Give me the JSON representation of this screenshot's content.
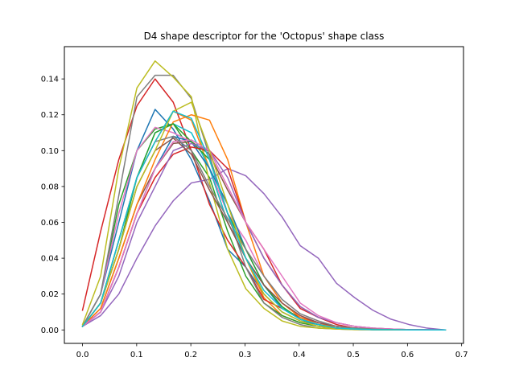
{
  "chart_data": {
    "type": "line",
    "title": "D4 shape descriptor for the 'Octopus' shape class",
    "xlabel": "",
    "ylabel": "",
    "xlim": [
      -0.0335,
      0.7035
    ],
    "ylim": [
      -0.0075,
      0.158
    ],
    "grid": false,
    "legend": "none",
    "x_ticks": [
      {
        "value": 0.0,
        "label": "0.0"
      },
      {
        "value": 0.1,
        "label": "0.1"
      },
      {
        "value": 0.2,
        "label": "0.2"
      },
      {
        "value": 0.3,
        "label": "0.3"
      },
      {
        "value": 0.4,
        "label": "0.4"
      },
      {
        "value": 0.5,
        "label": "0.5"
      },
      {
        "value": 0.6,
        "label": "0.6"
      },
      {
        "value": 0.7,
        "label": "0.7"
      }
    ],
    "y_ticks": [
      {
        "value": 0.0,
        "label": "0.00"
      },
      {
        "value": 0.02,
        "label": "0.02"
      },
      {
        "value": 0.04,
        "label": "0.04"
      },
      {
        "value": 0.06,
        "label": "0.06"
      },
      {
        "value": 0.08,
        "label": "0.08"
      },
      {
        "value": 0.1,
        "label": "0.10"
      },
      {
        "value": 0.12,
        "label": "0.12"
      },
      {
        "value": 0.14,
        "label": "0.14"
      }
    ],
    "x": [
      0.0,
      0.0335,
      0.067,
      0.1005,
      0.134,
      0.1675,
      0.201,
      0.2345,
      0.268,
      0.3015,
      0.335,
      0.3685,
      0.402,
      0.4355,
      0.469,
      0.5025,
      0.536,
      0.5695,
      0.603,
      0.6365,
      0.67
    ],
    "series": [
      {
        "color": "#1f77b4",
        "values": [
          0.002,
          0.02,
          0.06,
          0.1,
          0.123,
          0.112,
          0.095,
          0.072,
          0.045,
          0.035,
          0.02,
          0.01,
          0.005,
          0.003,
          0.002,
          0.001,
          0.0005,
          0.0003,
          0.0002,
          0.0001,
          0.0
        ]
      },
      {
        "color": "#ff7f0e",
        "values": [
          0.002,
          0.015,
          0.05,
          0.085,
          0.105,
          0.122,
          0.117,
          0.09,
          0.06,
          0.04,
          0.018,
          0.008,
          0.004,
          0.002,
          0.001,
          0.0005,
          0.0002,
          0.0001,
          0.0,
          0.0,
          0.0
        ]
      },
      {
        "color": "#2ca02c",
        "values": [
          0.002,
          0.02,
          0.07,
          0.1,
          0.112,
          0.115,
          0.1,
          0.085,
          0.055,
          0.03,
          0.015,
          0.008,
          0.004,
          0.002,
          0.001,
          0.0005,
          0.0002,
          0.0001,
          0.0,
          0.0,
          0.0
        ]
      },
      {
        "color": "#d62728",
        "values": [
          0.011,
          0.055,
          0.095,
          0.125,
          0.14,
          0.127,
          0.1,
          0.07,
          0.05,
          0.035,
          0.017,
          0.012,
          0.007,
          0.004,
          0.002,
          0.001,
          0.0005,
          0.0002,
          0.0001,
          0.0,
          0.0
        ]
      },
      {
        "color": "#9467bd",
        "values": [
          0.002,
          0.008,
          0.02,
          0.04,
          0.058,
          0.072,
          0.082,
          0.084,
          0.09,
          0.086,
          0.076,
          0.063,
          0.047,
          0.04,
          0.026,
          0.018,
          0.011,
          0.006,
          0.003,
          0.001,
          0.0
        ]
      },
      {
        "color": "#8c564b",
        "values": [
          0.002,
          0.012,
          0.04,
          0.07,
          0.09,
          0.104,
          0.105,
          0.098,
          0.078,
          0.06,
          0.04,
          0.025,
          0.013,
          0.007,
          0.004,
          0.002,
          0.001,
          0.0005,
          0.0002,
          0.0001,
          0.0
        ]
      },
      {
        "color": "#e377c2",
        "values": [
          0.002,
          0.02,
          0.065,
          0.1,
          0.113,
          0.11,
          0.105,
          0.09,
          0.065,
          0.05,
          0.03,
          0.015,
          0.008,
          0.004,
          0.002,
          0.001,
          0.0005,
          0.0002,
          0.0001,
          0.0,
          0.0
        ]
      },
      {
        "color": "#7f7f7f",
        "values": [
          0.002,
          0.02,
          0.075,
          0.13,
          0.142,
          0.142,
          0.129,
          0.097,
          0.065,
          0.035,
          0.015,
          0.007,
          0.003,
          0.001,
          0.0005,
          0.0002,
          0.0001,
          0.0,
          0.0,
          0.0,
          0.0
        ]
      },
      {
        "color": "#bcbd22",
        "values": [
          0.003,
          0.03,
          0.09,
          0.135,
          0.15,
          0.141,
          0.13,
          0.082,
          0.045,
          0.023,
          0.012,
          0.005,
          0.002,
          0.001,
          0.0005,
          0.0002,
          0.0001,
          0.0,
          0.0,
          0.0,
          0.0
        ]
      },
      {
        "color": "#17becf",
        "values": [
          0.002,
          0.015,
          0.05,
          0.085,
          0.11,
          0.115,
          0.11,
          0.09,
          0.06,
          0.04,
          0.025,
          0.012,
          0.006,
          0.003,
          0.001,
          0.0005,
          0.0002,
          0.0001,
          0.0,
          0.0,
          0.0
        ]
      },
      {
        "color": "#1f77b4",
        "values": [
          0.002,
          0.01,
          0.035,
          0.065,
          0.09,
          0.108,
          0.105,
          0.09,
          0.07,
          0.045,
          0.025,
          0.012,
          0.006,
          0.003,
          0.001,
          0.0005,
          0.0002,
          0.0001,
          0.0,
          0.0,
          0.0
        ]
      },
      {
        "color": "#ff7f0e",
        "values": [
          0.002,
          0.012,
          0.04,
          0.07,
          0.095,
          0.116,
          0.12,
          0.117,
          0.095,
          0.06,
          0.03,
          0.015,
          0.007,
          0.003,
          0.002,
          0.001,
          0.0005,
          0.0002,
          0.0001,
          0.0,
          0.0
        ]
      },
      {
        "color": "#2ca02c",
        "values": [
          0.002,
          0.015,
          0.045,
          0.085,
          0.11,
          0.115,
          0.105,
          0.095,
          0.065,
          0.045,
          0.025,
          0.013,
          0.006,
          0.003,
          0.001,
          0.0005,
          0.0002,
          0.0001,
          0.0,
          0.0,
          0.0
        ]
      },
      {
        "color": "#d62728",
        "values": [
          0.002,
          0.01,
          0.035,
          0.065,
          0.085,
          0.098,
          0.102,
          0.1,
          0.09,
          0.06,
          0.045,
          0.025,
          0.012,
          0.007,
          0.003,
          0.001,
          0.0005,
          0.0002,
          0.0001,
          0.0,
          0.0
        ]
      },
      {
        "color": "#9467bd",
        "values": [
          0.002,
          0.01,
          0.03,
          0.06,
          0.08,
          0.1,
          0.104,
          0.1,
          0.085,
          0.06,
          0.04,
          0.025,
          0.013,
          0.007,
          0.004,
          0.002,
          0.001,
          0.0005,
          0.0002,
          0.0001,
          0.0
        ]
      },
      {
        "color": "#8c564b",
        "values": [
          0.002,
          0.015,
          0.045,
          0.08,
          0.1,
          0.107,
          0.098,
          0.078,
          0.06,
          0.04,
          0.025,
          0.015,
          0.008,
          0.004,
          0.002,
          0.001,
          0.0005,
          0.0002,
          0.0001,
          0.0,
          0.0
        ]
      },
      {
        "color": "#e377c2",
        "values": [
          0.002,
          0.01,
          0.035,
          0.065,
          0.09,
          0.105,
          0.106,
          0.1,
          0.08,
          0.06,
          0.045,
          0.03,
          0.015,
          0.008,
          0.004,
          0.002,
          0.001,
          0.0005,
          0.0002,
          0.0001,
          0.0
        ]
      },
      {
        "color": "#7f7f7f",
        "values": [
          0.002,
          0.015,
          0.05,
          0.085,
          0.105,
          0.108,
          0.1,
          0.08,
          0.062,
          0.045,
          0.03,
          0.017,
          0.009,
          0.005,
          0.002,
          0.001,
          0.0005,
          0.0002,
          0.0001,
          0.0,
          0.0
        ]
      },
      {
        "color": "#bcbd22",
        "values": [
          0.002,
          0.015,
          0.045,
          0.08,
          0.1,
          0.122,
          0.127,
          0.1,
          0.07,
          0.04,
          0.02,
          0.01,
          0.005,
          0.002,
          0.001,
          0.0005,
          0.0002,
          0.0001,
          0.0,
          0.0,
          0.0
        ]
      },
      {
        "color": "#17becf",
        "values": [
          0.002,
          0.015,
          0.05,
          0.085,
          0.105,
          0.122,
          0.118,
          0.095,
          0.065,
          0.04,
          0.022,
          0.012,
          0.006,
          0.003,
          0.001,
          0.0005,
          0.0002,
          0.0001,
          0.0,
          0.0,
          0.0
        ]
      }
    ]
  }
}
